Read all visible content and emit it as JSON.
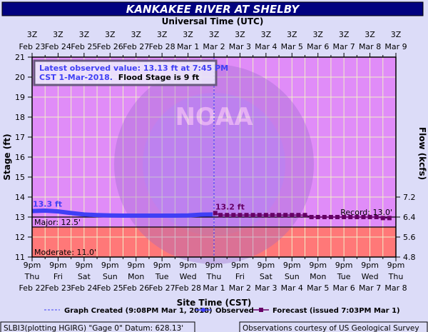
{
  "chart_data": {
    "type": "line",
    "title": "KANKAKEE RIVER AT SHELBY",
    "top_axis_label": "Universal Time (UTC)",
    "xlabel": "Site Time (CST)",
    "ylabel": "Stage (ft)",
    "y2label": "Flow (kcfs)",
    "ylim": [
      11,
      21
    ],
    "yticks": [
      11,
      12,
      13,
      14,
      15,
      16,
      17,
      18,
      19,
      20,
      21
    ],
    "y2ticks": [
      {
        "stage": 14,
        "label": "7.2"
      },
      {
        "stage": 13,
        "label": "6.4"
      },
      {
        "stage": 12,
        "label": "5.6"
      },
      {
        "stage": 11,
        "label": "4.8"
      }
    ],
    "xlim_days": [
      0,
      14
    ],
    "x_unit": "days since 9pm Thu Feb 22 CST",
    "utc_ticks": {
      "hour": "3Z",
      "dates": [
        "Feb 23",
        "Feb 24",
        "Feb 25",
        "Feb 26",
        "Feb 27",
        "Feb 28",
        "Mar 1",
        "Mar 2",
        "Mar 3",
        "Mar 4",
        "Mar 5",
        "Mar 6",
        "Mar 7",
        "Mar 8",
        "Mar 9"
      ]
    },
    "cst_ticks": {
      "hour": "9pm",
      "days": [
        "Thu",
        "Fri",
        "Sat",
        "Sun",
        "Mon",
        "Tue",
        "Wed",
        "Thu",
        "Fri",
        "Sat",
        "Sun",
        "Mon",
        "Tue",
        "Wed",
        "Thu"
      ],
      "dates": [
        "Feb 22",
        "Feb 23",
        "Feb 24",
        "Feb 25",
        "Feb 26",
        "Feb 27",
        "Feb 28",
        "Mar 1",
        "Mar 2",
        "Mar 3",
        "Mar 4",
        "Mar 5",
        "Mar 6",
        "Mar 7",
        "Mar 8"
      ]
    },
    "series": [
      {
        "name": "Observed",
        "color": "#3f3ff5",
        "x": [
          0,
          0.5,
          1,
          1.5,
          2,
          2.5,
          3,
          3.5,
          4,
          4.5,
          5,
          5.5,
          6,
          6.5,
          6.95
        ],
        "y": [
          13.3,
          13.32,
          13.28,
          13.2,
          13.13,
          13.1,
          13.08,
          13.07,
          13.07,
          13.07,
          13.07,
          13.07,
          13.08,
          13.12,
          13.13
        ]
      },
      {
        "name": "Forecast",
        "color": "#660066",
        "x": [
          7.05,
          7.25,
          7.5,
          7.75,
          8,
          8.25,
          8.5,
          8.75,
          9,
          9.25,
          9.5,
          9.75,
          10,
          10.25,
          10.5,
          10.75,
          11,
          11.25,
          11.5,
          11.75,
          12,
          12.25,
          12.5,
          12.75,
          13,
          13.25,
          13.5,
          13.75
        ],
        "y": [
          13.2,
          13.1,
          13.1,
          13.1,
          13.1,
          13.1,
          13.1,
          13.1,
          13.1,
          13.1,
          13.1,
          13.1,
          13.1,
          13.1,
          13.1,
          13.0,
          13.0,
          13.0,
          13.0,
          13.0,
          13.0,
          13.0,
          13.0,
          13.0,
          13.0,
          13.0,
          12.95,
          12.95
        ]
      }
    ],
    "thresholds": [
      {
        "label": "Record: 13.0'",
        "value": 13.0
      },
      {
        "label": "Major: 12.5'",
        "value": 12.5
      },
      {
        "label": "Moderate: 11.0'",
        "value": 11.0
      }
    ],
    "annotations": {
      "observed_peak": "13.3 ft",
      "forecast_peak": "13.2 ft",
      "graph_created_day": 7.0
    },
    "colors": {
      "major_zone": "#e08cf8",
      "moderate_zone": "#ff7878",
      "title_bg": "#000080",
      "background": "#dcdcf8"
    }
  },
  "info_box": {
    "line1": "Latest observed value: 13.13 ft at 7:45 PM",
    "line2a": "CST 1-Mar-2018.",
    "line2b": "Flood Stage is 9 ft"
  },
  "legend": {
    "graph_created": "Graph Created (9:08PM Mar 1, 2018)",
    "observed": "Observed",
    "forecast": "Forecast (issued 7:03PM Mar 1)"
  },
  "footer": {
    "left": "SLBI3(plotting HGIRG) \"Gage 0\" Datum: 628.13'",
    "right": "Observations courtesy of US Geological Survey"
  },
  "watermark": {
    "text": "NOAA"
  }
}
